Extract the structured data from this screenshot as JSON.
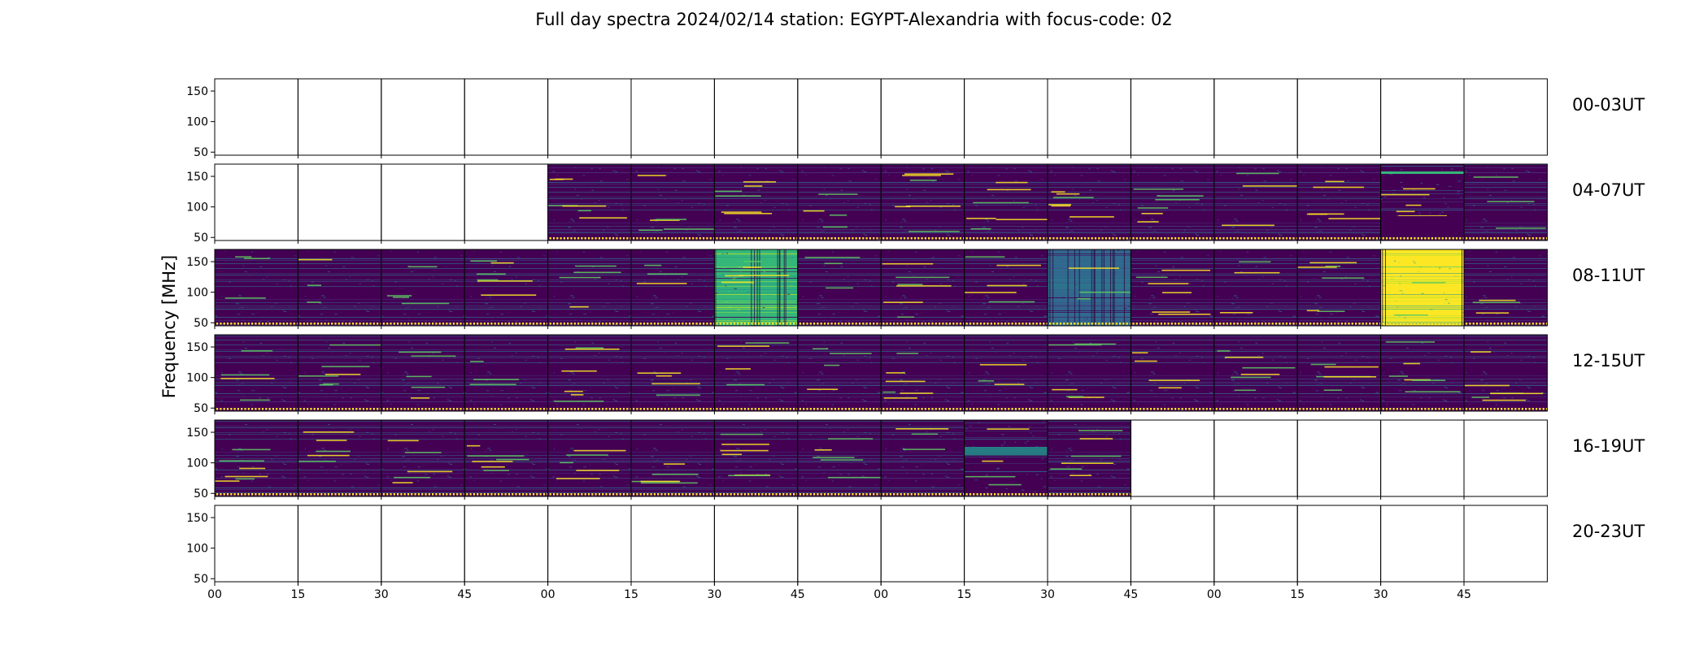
{
  "chart_data": {
    "type": "heatmap",
    "title": "Full day spectra 2024/02/14 station: EGYPT-Alexandria with focus-code: 02",
    "ylabel": "Frequency [MHz]",
    "xlabel": "",
    "ylim": [
      45,
      170
    ],
    "y_ticks": [
      "50",
      "100",
      "150"
    ],
    "x_ticks": [
      "00",
      "15",
      "30",
      "45",
      "00",
      "15",
      "30",
      "45",
      "00",
      "15",
      "30",
      "45",
      "00",
      "15",
      "30",
      "45"
    ],
    "grid": false,
    "colormap": "viridis",
    "colors": {
      "low": "#440154",
      "mid": "#21918c",
      "high": "#fde725",
      "marker": "#fde725"
    },
    "rows": [
      {
        "label": "00-03UT",
        "panels": [
          "empty",
          "empty",
          "empty",
          "empty",
          "empty",
          "empty",
          "empty",
          "empty",
          "empty",
          "empty",
          "empty",
          "empty",
          "empty",
          "empty",
          "empty",
          "empty"
        ]
      },
      {
        "label": "04-07UT",
        "panels": [
          "empty",
          "empty",
          "empty",
          "empty",
          "quiet",
          "quiet",
          "quiet",
          "quiet",
          "quiet",
          "quiet",
          "quiet",
          "quiet",
          "quiet",
          "quiet",
          "band-dark",
          "quiet"
        ]
      },
      {
        "label": "08-11UT",
        "panels": [
          "quiet",
          "quiet",
          "quiet",
          "quiet",
          "quiet",
          "quiet",
          "broadband-bright",
          "quiet",
          "quiet",
          "quiet",
          "broadband-mid",
          "quiet",
          "quiet",
          "quiet",
          "broadband-saturated",
          "quiet"
        ]
      },
      {
        "label": "12-15UT",
        "panels": [
          "quiet",
          "quiet",
          "quiet",
          "quiet",
          "quiet",
          "quiet",
          "quiet",
          "quiet",
          "quiet",
          "quiet",
          "quiet",
          "quiet",
          "quiet",
          "quiet",
          "quiet",
          "quiet"
        ]
      },
      {
        "label": "16-19UT",
        "panels": [
          "quiet",
          "quiet",
          "quiet",
          "quiet",
          "quiet",
          "quiet",
          "quiet",
          "quiet",
          "quiet",
          "band-mid",
          "quiet",
          "empty",
          "empty",
          "empty",
          "empty",
          "empty"
        ]
      },
      {
        "label": "20-23UT",
        "panels": [
          "empty",
          "empty",
          "empty",
          "empty",
          "empty",
          "empty",
          "empty",
          "empty",
          "empty",
          "empty",
          "empty",
          "empty",
          "empty",
          "empty",
          "empty",
          "empty"
        ]
      }
    ]
  }
}
